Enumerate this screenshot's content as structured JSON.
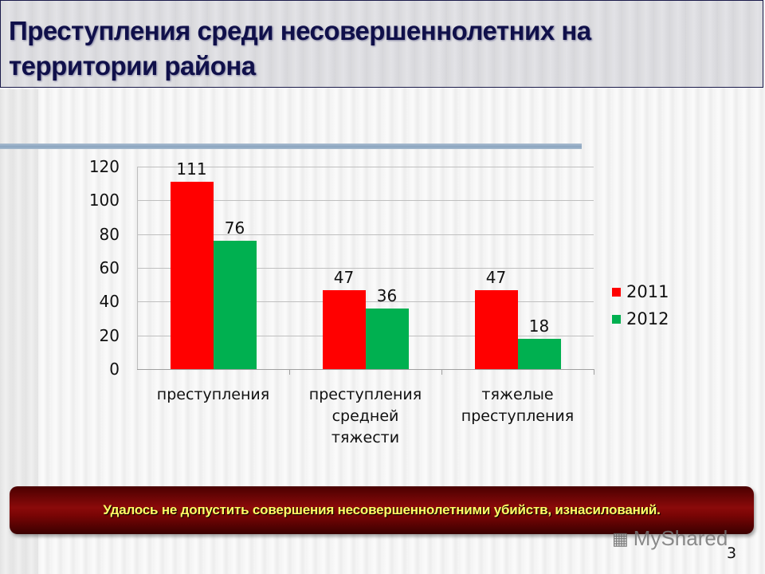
{
  "slide": {
    "title": "Преступления среди несовершеннолетних на территории района",
    "note": "Удалось не допустить совершения несовершеннолетними убийств, изнасилований.",
    "watermark": "MyShared",
    "watermark_icon": "presentation-board-icon",
    "page_number": "3"
  },
  "chart_data": {
    "type": "bar",
    "title": "",
    "xlabel": "",
    "ylabel": "",
    "ylim": [
      0,
      120
    ],
    "yticks": [
      "0",
      "20",
      "40",
      "60",
      "80",
      "100",
      "120"
    ],
    "grid": true,
    "legend_position": "right",
    "categories": [
      "преступления",
      "преступления средней тяжести",
      "тяжелые преступления"
    ],
    "category_lines": [
      [
        "преступления"
      ],
      [
        "преступления",
        "средней",
        "тяжести"
      ],
      [
        "тяжелые",
        "преступления"
      ]
    ],
    "series": [
      {
        "name": "2011",
        "color": "#ff0000",
        "values": [
          111,
          47,
          47
        ],
        "labels": [
          "111",
          "47",
          "47"
        ]
      },
      {
        "name": "2012",
        "color": "#00b050",
        "values": [
          76,
          36,
          18
        ],
        "labels": [
          "76",
          "36",
          "18"
        ]
      }
    ]
  }
}
